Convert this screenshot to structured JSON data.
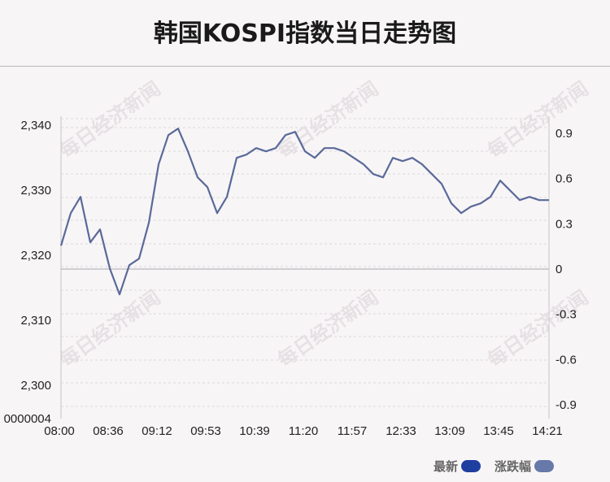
{
  "title": "韩国KOSPI指数当日走势图",
  "watermark": "每日经济新闻",
  "legend": [
    {
      "label": "最新",
      "color": "#1f3fa0"
    },
    {
      "label": "涨跌幅",
      "color": "#6679a8"
    }
  ],
  "chart_data": {
    "type": "line",
    "title": "韩国KOSPI指数当日走势图",
    "x_ticks": [
      "08:00",
      "08:36",
      "09:12",
      "09:53",
      "10:39",
      "11:20",
      "11:57",
      "12:33",
      "13:09",
      "13:45",
      "14:21"
    ],
    "left_axis": {
      "ticks": [
        2340,
        2330,
        2320,
        2310,
        2300
      ],
      "tick_labels": [
        "2,340",
        "2,330",
        "2,320",
        "2,310",
        "2,300"
      ],
      "bottom_label": "0000004",
      "ylim": [
        2294.9,
        2341.4
      ]
    },
    "right_axis": {
      "ticks": [
        0.9,
        0.6,
        0.3,
        0,
        -0.3,
        -0.6,
        -0.9
      ],
      "tick_labels": [
        "0.9",
        "0.6",
        "0.3",
        "0",
        "-0.3",
        "-0.6",
        "-0.9"
      ]
    },
    "baseline": 2317.9,
    "grid": true,
    "line_color": "#5a6a99",
    "series": [
      {
        "x": [
          0,
          0.02,
          0.04,
          0.06,
          0.08,
          0.1,
          0.12,
          0.14,
          0.16,
          0.18,
          0.2,
          0.22,
          0.24,
          0.26,
          0.28,
          0.3,
          0.32,
          0.34,
          0.36,
          0.38,
          0.4,
          0.42,
          0.44,
          0.46,
          0.48,
          0.5,
          0.52,
          0.54,
          0.56,
          0.58,
          0.6,
          0.62,
          0.64,
          0.66,
          0.68,
          0.7,
          0.72,
          0.74,
          0.76,
          0.78,
          0.8,
          0.82,
          0.84,
          0.86,
          0.88,
          0.9,
          0.92,
          0.94,
          0.96,
          0.98,
          1.0
        ],
        "values": [
          2321.5,
          2326.5,
          2329,
          2322,
          2324,
          2318,
          2314,
          2318.5,
          2319.5,
          2325,
          2334,
          2338.5,
          2339.5,
          2336,
          2332,
          2330.5,
          2326.5,
          2329,
          2335,
          2335.5,
          2336.5,
          2336,
          2336.5,
          2338.5,
          2339,
          2336,
          2335,
          2336.5,
          2336.5,
          2336,
          2335,
          2334,
          2332.5,
          2332,
          2335,
          2334.5,
          2335,
          2334,
          2332.5,
          2331,
          2328,
          2326.5,
          2327.5,
          2328,
          2329,
          2331.5,
          2330,
          2328.5,
          2329,
          2328.5,
          2328.5
        ]
      }
    ]
  }
}
